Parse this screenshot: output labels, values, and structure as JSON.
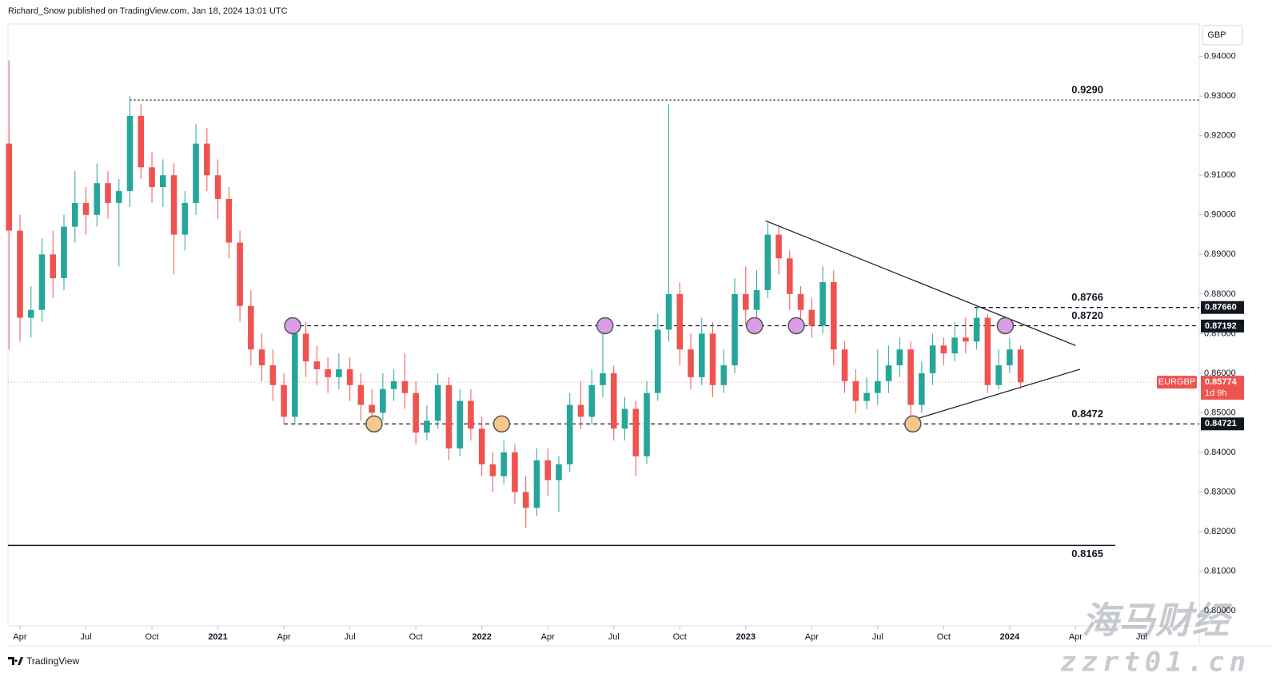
{
  "header": "Richard_Snow published on TradingView.com, Jan 18, 2024 13:01 UTC",
  "footer": "TradingView",
  "watermark": [
    "海马财经",
    "zzrt01.cn"
  ],
  "chart_data": {
    "type": "candlestick",
    "currency": "GBP",
    "up_color": "#26a69a",
    "down_color": "#ef5350",
    "xlim": [
      2.455,
      56.62
    ],
    "ylim": [
      0.7962,
      0.9482
    ],
    "xticks": [
      {
        "value": 3,
        "label": "Apr"
      },
      {
        "value": 6,
        "label": "Jul"
      },
      {
        "value": 9,
        "label": "Oct"
      },
      {
        "value": 12,
        "label": "2021"
      },
      {
        "value": 15,
        "label": "Apr"
      },
      {
        "value": 18,
        "label": "Jul"
      },
      {
        "value": 21,
        "label": "Oct"
      },
      {
        "value": 24,
        "label": "2022"
      },
      {
        "value": 27,
        "label": "Apr"
      },
      {
        "value": 30,
        "label": "Jul"
      },
      {
        "value": 33,
        "label": "Oct"
      },
      {
        "value": 36,
        "label": "2023"
      },
      {
        "value": 39,
        "label": "Apr"
      },
      {
        "value": 42,
        "label": "Jul"
      },
      {
        "value": 45,
        "label": "Oct"
      },
      {
        "value": 48,
        "label": "2024"
      },
      {
        "value": 51,
        "label": "Apr"
      },
      {
        "value": 54,
        "label": "Jul"
      }
    ],
    "yticks": [
      {
        "value": 0.8,
        "label": "0.80000"
      },
      {
        "value": 0.81,
        "label": "0.81000"
      },
      {
        "value": 0.82,
        "label": "0.82000"
      },
      {
        "value": 0.83,
        "label": "0.83000"
      },
      {
        "value": 0.84,
        "label": "0.84000"
      },
      {
        "value": 0.85,
        "label": "0.85000"
      },
      {
        "value": 0.86,
        "label": "0.86000"
      },
      {
        "value": 0.87,
        "label": "0.87000"
      },
      {
        "value": 0.88,
        "label": "0.88000"
      },
      {
        "value": 0.89,
        "label": "0.89000"
      },
      {
        "value": 0.9,
        "label": "0.90000"
      },
      {
        "value": 0.91,
        "label": "0.91000"
      },
      {
        "value": 0.92,
        "label": "0.92000"
      },
      {
        "value": 0.93,
        "label": "0.93000"
      },
      {
        "value": 0.94,
        "label": "0.94000"
      }
    ],
    "x": [
      2.5,
      3.0,
      3.5,
      4.0,
      4.5,
      5.0,
      5.5,
      6.0,
      6.5,
      7.0,
      7.5,
      8.0,
      8.5,
      9.0,
      9.5,
      10.0,
      10.5,
      11.0,
      11.5,
      12.0,
      12.5,
      13.0,
      13.5,
      14.0,
      14.5,
      15.0,
      15.5,
      16.0,
      16.5,
      17.0,
      17.5,
      18.0,
      18.5,
      19.0,
      19.5,
      20.0,
      20.5,
      21.0,
      21.5,
      22.0,
      22.5,
      23.0,
      23.5,
      24.0,
      24.5,
      25.0,
      25.5,
      26.0,
      26.5,
      27.0,
      27.5,
      28.0,
      28.5,
      29.0,
      29.5,
      30.0,
      30.5,
      31.0,
      31.5,
      32.0,
      32.5,
      33.0,
      33.5,
      34.0,
      34.5,
      35.0,
      35.5,
      36.0,
      36.5,
      37.0,
      37.5,
      38.0,
      38.5,
      39.0,
      39.5,
      40.0,
      40.5,
      41.0,
      41.5,
      42.0,
      42.5,
      43.0,
      43.5,
      44.0,
      44.5,
      45.0,
      45.5,
      46.0,
      46.5,
      47.0,
      47.5,
      48.0,
      48.5
    ],
    "open": [
      0.918,
      0.896,
      0.874,
      0.876,
      0.89,
      0.884,
      0.897,
      0.903,
      0.9,
      0.908,
      0.903,
      0.906,
      0.925,
      0.912,
      0.907,
      0.91,
      0.895,
      0.903,
      0.918,
      0.91,
      0.904,
      0.893,
      0.877,
      0.866,
      0.862,
      0.857,
      0.849,
      0.87,
      0.863,
      0.861,
      0.859,
      0.861,
      0.857,
      0.852,
      0.85,
      0.856,
      0.858,
      0.855,
      0.845,
      0.848,
      0.857,
      0.841,
      0.853,
      0.846,
      0.837,
      0.834,
      0.84,
      0.83,
      0.826,
      0.838,
      0.833,
      0.837,
      0.852,
      0.849,
      0.857,
      0.86,
      0.846,
      0.851,
      0.839,
      0.855,
      0.871,
      0.88,
      0.866,
      0.859,
      0.87,
      0.857,
      0.862,
      0.88,
      0.876,
      0.881,
      0.895,
      0.889,
      0.88,
      0.876,
      0.872,
      0.883,
      0.866,
      0.858,
      0.853,
      0.855,
      0.858,
      0.862,
      0.866,
      0.852,
      0.86,
      0.867,
      0.865,
      0.869,
      0.868,
      0.874,
      0.857,
      0.862,
      0.866
    ],
    "high": [
      0.939,
      0.9,
      0.882,
      0.894,
      0.896,
      0.9,
      0.911,
      0.907,
      0.913,
      0.911,
      0.909,
      0.93,
      0.928,
      0.916,
      0.914,
      0.913,
      0.906,
      0.923,
      0.922,
      0.914,
      0.907,
      0.896,
      0.881,
      0.87,
      0.866,
      0.86,
      0.873,
      0.873,
      0.867,
      0.864,
      0.865,
      0.864,
      0.86,
      0.856,
      0.86,
      0.861,
      0.865,
      0.858,
      0.852,
      0.86,
      0.859,
      0.856,
      0.856,
      0.849,
      0.84,
      0.843,
      0.842,
      0.834,
      0.841,
      0.841,
      0.839,
      0.855,
      0.858,
      0.861,
      0.872,
      0.862,
      0.854,
      0.853,
      0.858,
      0.875,
      0.928,
      0.883,
      0.87,
      0.874,
      0.873,
      0.866,
      0.884,
      0.887,
      0.886,
      0.898,
      0.897,
      0.891,
      0.882,
      0.879,
      0.887,
      0.886,
      0.868,
      0.861,
      0.859,
      0.866,
      0.867,
      0.869,
      0.868,
      0.863,
      0.87,
      0.869,
      0.873,
      0.874,
      0.877,
      0.875,
      0.866,
      0.869,
      0.867
    ],
    "low": [
      0.866,
      0.868,
      0.869,
      0.873,
      0.879,
      0.881,
      0.893,
      0.895,
      0.897,
      0.899,
      0.887,
      0.902,
      0.909,
      0.903,
      0.902,
      0.885,
      0.891,
      0.9,
      0.906,
      0.899,
      0.889,
      0.873,
      0.862,
      0.858,
      0.853,
      0.847,
      0.847,
      0.859,
      0.857,
      0.855,
      0.856,
      0.853,
      0.848,
      0.846,
      0.848,
      0.853,
      0.851,
      0.842,
      0.843,
      0.846,
      0.838,
      0.839,
      0.843,
      0.834,
      0.83,
      0.832,
      0.827,
      0.821,
      0.824,
      0.829,
      0.825,
      0.835,
      0.846,
      0.847,
      0.854,
      0.843,
      0.843,
      0.834,
      0.837,
      0.853,
      0.868,
      0.862,
      0.856,
      0.857,
      0.854,
      0.855,
      0.86,
      0.872,
      0.873,
      0.879,
      0.885,
      0.876,
      0.872,
      0.869,
      0.87,
      0.862,
      0.855,
      0.85,
      0.851,
      0.852,
      0.855,
      0.859,
      0.847,
      0.85,
      0.857,
      0.862,
      0.863,
      0.865,
      0.866,
      0.855,
      0.856,
      0.86,
      0.856
    ],
    "close": [
      0.896,
      0.874,
      0.876,
      0.89,
      0.884,
      0.897,
      0.903,
      0.9,
      0.908,
      0.903,
      0.906,
      0.925,
      0.912,
      0.907,
      0.91,
      0.895,
      0.903,
      0.918,
      0.91,
      0.904,
      0.893,
      0.877,
      0.866,
      0.862,
      0.857,
      0.849,
      0.87,
      0.863,
      0.861,
      0.859,
      0.861,
      0.857,
      0.852,
      0.85,
      0.856,
      0.858,
      0.855,
      0.845,
      0.848,
      0.857,
      0.841,
      0.853,
      0.846,
      0.837,
      0.834,
      0.84,
      0.83,
      0.826,
      0.838,
      0.833,
      0.837,
      0.852,
      0.849,
      0.857,
      0.86,
      0.846,
      0.851,
      0.839,
      0.855,
      0.871,
      0.88,
      0.866,
      0.859,
      0.87,
      0.857,
      0.862,
      0.88,
      0.876,
      0.881,
      0.895,
      0.889,
      0.88,
      0.876,
      0.872,
      0.883,
      0.866,
      0.858,
      0.853,
      0.855,
      0.858,
      0.862,
      0.866,
      0.852,
      0.86,
      0.867,
      0.865,
      0.869,
      0.868,
      0.874,
      0.857,
      0.862,
      0.866,
      0.8577
    ],
    "levels": [
      {
        "value": 0.929,
        "label": "0.9290",
        "style": "dotted",
        "x_start": 8.0
      },
      {
        "value": 0.8766,
        "label": "0.8766",
        "style": "dashed",
        "x_start": 46.4
      },
      {
        "value": 0.872,
        "label": "0.8720",
        "style": "dashed",
        "x_start": 15.4
      },
      {
        "value": 0.8472,
        "label": "0.8472",
        "style": "dashed",
        "x_start": 15.0
      },
      {
        "value": 0.8165,
        "label": "0.8165",
        "style": "solid",
        "x_start": 2.455,
        "x_end": 52.8
      }
    ],
    "price_badges": [
      {
        "value": 0.8766,
        "label": "0.87660"
      },
      {
        "value": 0.87192,
        "label": "0.87192"
      },
      {
        "value": 0.84721,
        "label": "0.84721"
      }
    ],
    "last_price": {
      "symbol": "EURGBP",
      "value": 0.85774,
      "label": "0.85774",
      "countdown": "1d 9h",
      "color": "#ef5350"
    },
    "trendlines": [
      {
        "x": [
          36.9,
          51.0
        ],
        "y": [
          0.8985,
          0.867
        ]
      },
      {
        "x": [
          43.6,
          51.2
        ],
        "y": [
          0.8482,
          0.861
        ]
      }
    ],
    "markers": [
      {
        "x": 15.4,
        "y": 0.872,
        "color": "#da9ee6"
      },
      {
        "x": 29.6,
        "y": 0.872,
        "color": "#da9ee6"
      },
      {
        "x": 36.4,
        "y": 0.872,
        "color": "#da9ee6"
      },
      {
        "x": 38.3,
        "y": 0.872,
        "color": "#da9ee6"
      },
      {
        "x": 47.8,
        "y": 0.872,
        "color": "#da9ee6"
      },
      {
        "x": 19.1,
        "y": 0.8472,
        "color": "#f6c98a"
      },
      {
        "x": 24.9,
        "y": 0.8472,
        "color": "#f6c98a"
      },
      {
        "x": 43.6,
        "y": 0.8472,
        "color": "#f6c98a"
      }
    ]
  }
}
